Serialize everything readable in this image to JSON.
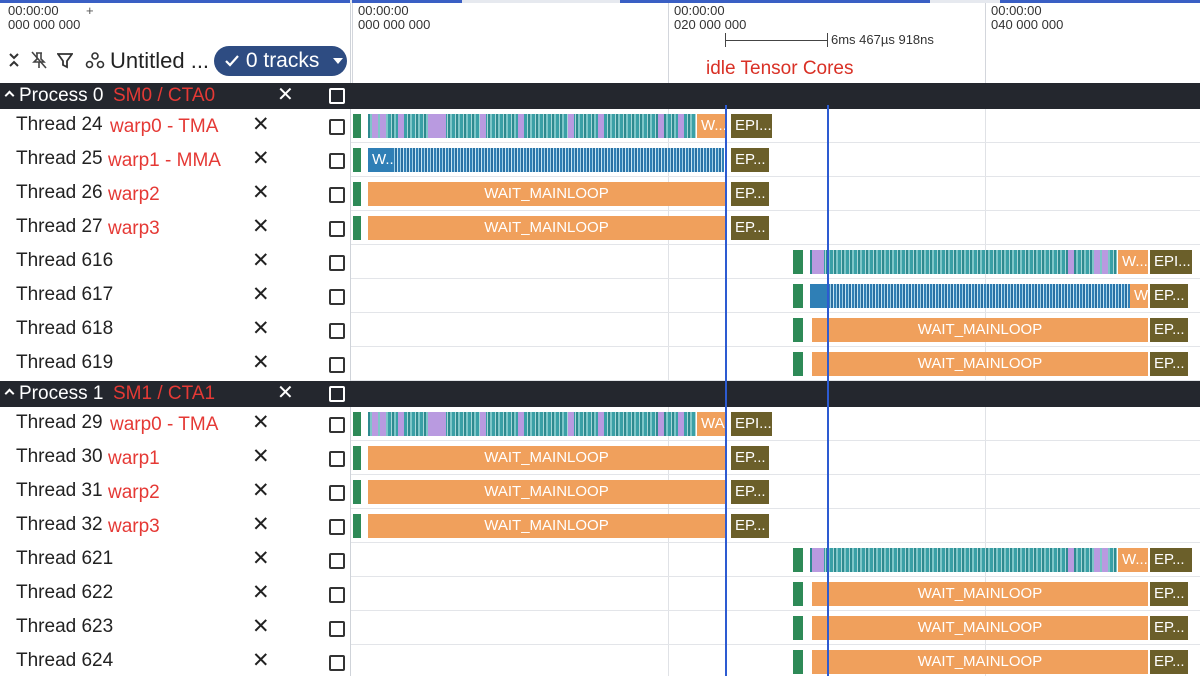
{
  "header": {
    "left_time": [
      "00:00:00",
      "000 000 000"
    ],
    "ticks": [
      {
        "lines": [
          "00:00:00",
          "000 000 000"
        ]
      },
      {
        "lines": [
          "00:00:00",
          "020 000 000"
        ]
      },
      {
        "lines": [
          "00:00:00",
          "040 000 000"
        ]
      }
    ],
    "add_label": "+",
    "workspace_title": "Untitled ...",
    "tracks_button": "0 tracks",
    "measurement": "6ms 467µs 918ns",
    "annotation": "idle Tensor Cores"
  },
  "icons": {
    "collapse": "collapse-icon",
    "unpin": "unpin-icon",
    "filter": "filter-icon",
    "workspace": "workspace-icon",
    "check": "check-icon",
    "close": "close-icon",
    "checkbox": "checkbox-icon"
  },
  "colors": {
    "wait": "#f0a05c",
    "epilogue": "#6b5f2a",
    "start": "#2e8a57",
    "tma": "#3f9aa2",
    "mma": "#2f7fb6",
    "cursor": "#2d5bd1",
    "annotation": "#d93025"
  },
  "processes": [
    {
      "name": "Process 0",
      "annotation": "SM0 / CTA0",
      "threads": [
        {
          "name": "Thread 24",
          "warp": "warp0 - TMA",
          "pattern": "tma",
          "slices": [
            "W...",
            "EPI..."
          ]
        },
        {
          "name": "Thread 25",
          "warp": "warp1 - MMA",
          "pattern": "mma",
          "slices": [
            "W...",
            "EP..."
          ]
        },
        {
          "name": "Thread 26",
          "warp": "warp2",
          "pattern": "wait",
          "slices": [
            "WAIT_MAINLOOP",
            "EP..."
          ]
        },
        {
          "name": "Thread 27",
          "warp": "warp3",
          "pattern": "wait",
          "slices": [
            "WAIT_MAINLOOP",
            "EP..."
          ]
        },
        {
          "name": "Thread 616",
          "warp": "",
          "pattern": "tma2",
          "slices": [
            "W...",
            "EPI..."
          ]
        },
        {
          "name": "Thread 617",
          "warp": "",
          "pattern": "mma2",
          "slices": [
            "W",
            "EP..."
          ]
        },
        {
          "name": "Thread 618",
          "warp": "",
          "pattern": "wait2",
          "slices": [
            "WAIT_MAINLOOP",
            "EP..."
          ]
        },
        {
          "name": "Thread 619",
          "warp": "",
          "pattern": "wait2",
          "slices": [
            "WAIT_MAINLOOP",
            "EP..."
          ]
        }
      ]
    },
    {
      "name": "Process 1",
      "annotation": "SM1 / CTA1",
      "threads": [
        {
          "name": "Thread 29",
          "warp": "warp0 - TMA",
          "pattern": "tma",
          "slices": [
            "WA...",
            "EPI..."
          ]
        },
        {
          "name": "Thread 30",
          "warp": "warp1",
          "pattern": "wait",
          "slices": [
            "WAIT_MAINLOOP",
            "EP..."
          ]
        },
        {
          "name": "Thread 31",
          "warp": "warp2",
          "pattern": "wait",
          "slices": [
            "WAIT_MAINLOOP",
            "EP..."
          ]
        },
        {
          "name": "Thread 32",
          "warp": "warp3",
          "pattern": "wait",
          "slices": [
            "WAIT_MAINLOOP",
            "EP..."
          ]
        },
        {
          "name": "Thread 621",
          "warp": "",
          "pattern": "tma2",
          "slices": [
            "W...",
            "EP..."
          ]
        },
        {
          "name": "Thread 622",
          "warp": "",
          "pattern": "wait2",
          "slices": [
            "WAIT_MAINLOOP",
            "EP..."
          ]
        },
        {
          "name": "Thread 623",
          "warp": "",
          "pattern": "wait2",
          "slices": [
            "WAIT_MAINLOOP",
            "EP..."
          ]
        },
        {
          "name": "Thread 624",
          "warp": "",
          "pattern": "wait2",
          "slices": [
            "WAIT_MAINLOOP",
            "EP..."
          ]
        }
      ]
    }
  ]
}
